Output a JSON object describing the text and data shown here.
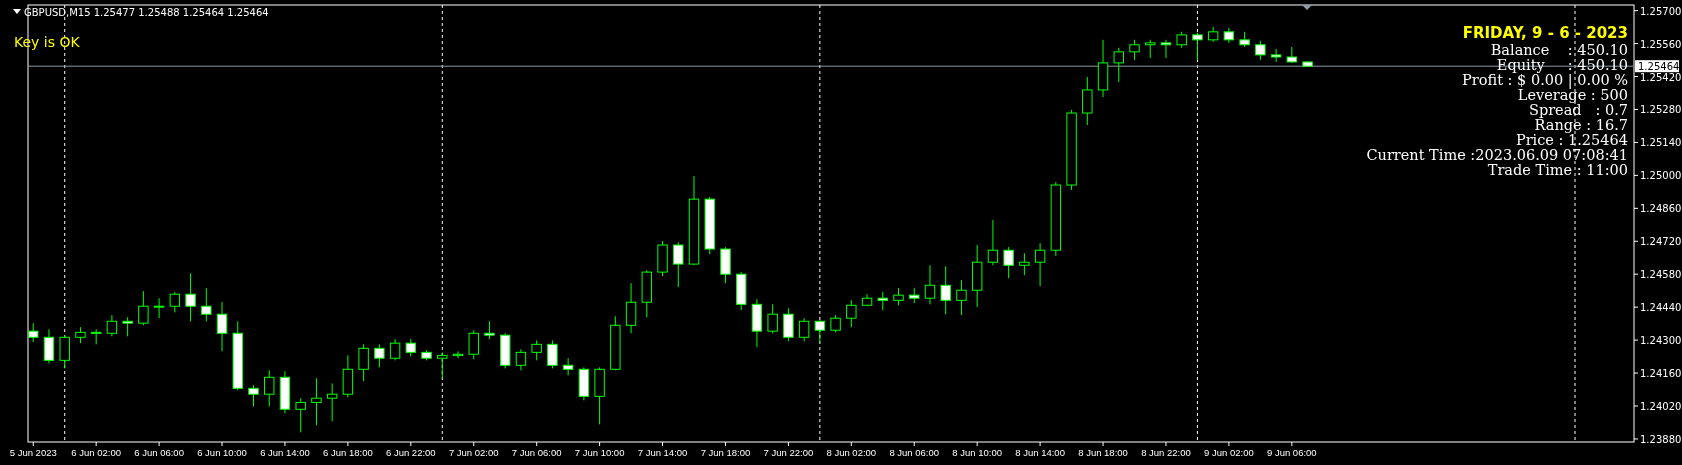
{
  "chart_data": {
    "type": "candlestick",
    "title": "GBPUSD,M15  1.25477 1.25488 1.25464 1.25464",
    "annotations": [
      "Key is OK",
      "FRIDAY, 9 - 6 - 2023",
      "Balance    : 450.10",
      "Equity     : 450.10",
      "Profit : $ 0.00 | 0.00 %",
      "Leverage : 500",
      "Spread   : 0.7",
      "Range : 16.7",
      "Price : 1.25464",
      "Current Time :2023.06.09 07:08:41",
      "Trade Time : 11:00"
    ],
    "x": [
      "2023-06-05T22:00",
      "2023-06-05T23:00",
      "2023-06-06T00:00",
      "2023-06-06T01:00",
      "2023-06-06T02:00",
      "2023-06-06T03:00",
      "2023-06-06T04:00",
      "2023-06-06T05:00",
      "2023-06-06T06:00",
      "2023-06-06T07:00",
      "2023-06-06T08:00",
      "2023-06-06T09:00",
      "2023-06-06T10:00",
      "2023-06-06T11:00",
      "2023-06-06T12:00",
      "2023-06-06T13:00",
      "2023-06-06T14:00",
      "2023-06-06T15:00",
      "2023-06-06T16:00",
      "2023-06-06T17:00",
      "2023-06-06T18:00",
      "2023-06-06T19:00",
      "2023-06-06T20:00",
      "2023-06-06T21:00",
      "2023-06-06T22:00",
      "2023-06-06T23:00",
      "2023-06-07T00:00",
      "2023-06-07T01:00",
      "2023-06-07T02:00",
      "2023-06-07T03:00",
      "2023-06-07T04:00",
      "2023-06-07T05:00",
      "2023-06-07T06:00",
      "2023-06-07T07:00",
      "2023-06-07T08:00",
      "2023-06-07T09:00",
      "2023-06-07T10:00",
      "2023-06-07T11:00",
      "2023-06-07T12:00",
      "2023-06-07T13:00",
      "2023-06-07T14:00",
      "2023-06-07T15:00",
      "2023-06-07T16:00",
      "2023-06-07T17:00",
      "2023-06-07T18:00",
      "2023-06-07T19:00",
      "2023-06-07T20:00",
      "2023-06-07T21:00",
      "2023-06-07T22:00",
      "2023-06-07T23:00",
      "2023-06-08T00:00",
      "2023-06-08T01:00",
      "2023-06-08T02:00",
      "2023-06-08T03:00",
      "2023-06-08T04:00",
      "2023-06-08T05:00",
      "2023-06-08T06:00",
      "2023-06-08T07:00",
      "2023-06-08T08:00",
      "2023-06-08T09:00",
      "2023-06-08T10:00",
      "2023-06-08T11:00",
      "2023-06-08T12:00",
      "2023-06-08T13:00",
      "2023-06-08T14:00",
      "2023-06-08T15:00",
      "2023-06-08T16:00",
      "2023-06-08T17:00",
      "2023-06-08T18:00",
      "2023-06-08T19:00",
      "2023-06-08T20:00",
      "2023-06-08T21:00",
      "2023-06-08T22:00",
      "2023-06-08T23:00",
      "2023-06-09T00:00",
      "2023-06-09T01:00",
      "2023-06-09T02:00",
      "2023-06-09T03:00",
      "2023-06-09T04:00",
      "2023-06-09T05:00",
      "2023-06-09T06:00",
      "2023-06-09T07:00"
    ],
    "ohlc": [
      [
        1.24338,
        1.24372,
        1.24291,
        1.24312
      ],
      [
        1.24312,
        1.24346,
        1.24201,
        1.24214
      ],
      [
        1.24214,
        1.24321,
        1.2418,
        1.24312
      ],
      [
        1.24312,
        1.24355,
        1.24287,
        1.24333
      ],
      [
        1.24333,
        1.24346,
        1.24282,
        1.24329
      ],
      [
        1.24329,
        1.24406,
        1.24316,
        1.2438
      ],
      [
        1.2438,
        1.24397,
        1.24316,
        1.24372
      ],
      [
        1.24372,
        1.24508,
        1.24363,
        1.24444
      ],
      [
        1.24444,
        1.24478,
        1.24393,
        1.24444
      ],
      [
        1.24444,
        1.24504,
        1.24418,
        1.24495
      ],
      [
        1.24495,
        1.24584,
        1.2438,
        1.24444
      ],
      [
        1.24444,
        1.24521,
        1.2438,
        1.2441
      ],
      [
        1.2441,
        1.24461,
        1.24252,
        1.24329
      ],
      [
        1.24329,
        1.2438,
        1.24087,
        1.24095
      ],
      [
        1.24095,
        1.24108,
        1.24018,
        1.2407
      ],
      [
        1.2407,
        1.24172,
        1.24018,
        1.24142
      ],
      [
        1.24142,
        1.24167,
        1.23989,
        1.24006
      ],
      [
        1.24006,
        1.24053,
        1.23908,
        1.24035
      ],
      [
        1.24035,
        1.24138,
        1.23938,
        1.24053
      ],
      [
        1.24053,
        1.24116,
        1.23955,
        1.2407
      ],
      [
        1.2407,
        1.24235,
        1.24057,
        1.24176
      ],
      [
        1.24176,
        1.24282,
        1.24125,
        1.24265
      ],
      [
        1.24265,
        1.24282,
        1.24184,
        1.24223
      ],
      [
        1.24223,
        1.24304,
        1.24214,
        1.24287
      ],
      [
        1.24287,
        1.24304,
        1.24231,
        1.24248
      ],
      [
        1.24248,
        1.24257,
        1.24214,
        1.24223
      ],
      [
        1.24223,
        1.24248,
        1.24138,
        1.24235
      ],
      [
        1.24235,
        1.24252,
        1.24223,
        1.2424
      ],
      [
        1.2424,
        1.24342,
        1.24218,
        1.24329
      ],
      [
        1.24329,
        1.2438,
        1.24304,
        1.24321
      ],
      [
        1.24321,
        1.24329,
        1.2418,
        1.24193
      ],
      [
        1.24193,
        1.24261,
        1.24172,
        1.24248
      ],
      [
        1.24248,
        1.24299,
        1.24214,
        1.24282
      ],
      [
        1.24282,
        1.24299,
        1.2418,
        1.24193
      ],
      [
        1.24193,
        1.24223,
        1.2415,
        1.24176
      ],
      [
        1.24176,
        1.24184,
        1.24044,
        1.24061
      ],
      [
        1.24061,
        1.24184,
        1.23942,
        1.24176
      ],
      [
        1.24176,
        1.24401,
        1.24172,
        1.24363
      ],
      [
        1.24363,
        1.24542,
        1.24329,
        1.24461
      ],
      [
        1.24461,
        1.24597,
        1.24397,
        1.24589
      ],
      [
        1.24589,
        1.24721,
        1.24572,
        1.24704
      ],
      [
        1.24704,
        1.24716,
        1.24525,
        1.24623
      ],
      [
        1.24623,
        1.24997,
        1.24618,
        1.24899
      ],
      [
        1.24899,
        1.24908,
        1.24665,
        1.24687
      ],
      [
        1.24687,
        1.24695,
        1.24542,
        1.2458
      ],
      [
        1.2458,
        1.24589,
        1.24427,
        1.24452
      ],
      [
        1.24452,
        1.24474,
        1.2427,
        1.24338
      ],
      [
        1.24338,
        1.24452,
        1.24329,
        1.2441
      ],
      [
        1.2441,
        1.24435,
        1.24295,
        1.24312
      ],
      [
        1.24312,
        1.24393,
        1.24295,
        1.2438
      ],
      [
        1.2438,
        1.24384,
        1.24287,
        1.24342
      ],
      [
        1.24342,
        1.24406,
        1.24333,
        1.24393
      ],
      [
        1.24393,
        1.24469,
        1.24355,
        1.24448
      ],
      [
        1.24448,
        1.24495,
        1.24444,
        1.24478
      ],
      [
        1.24478,
        1.24504,
        1.24427,
        1.24469
      ],
      [
        1.24469,
        1.24521,
        1.24448,
        1.24491
      ],
      [
        1.24491,
        1.24521,
        1.24457,
        1.24478
      ],
      [
        1.24478,
        1.24618,
        1.24452,
        1.24533
      ],
      [
        1.24533,
        1.24614,
        1.2441,
        1.24469
      ],
      [
        1.24469,
        1.24555,
        1.24406,
        1.24512
      ],
      [
        1.24512,
        1.24704,
        1.2444,
        1.24631
      ],
      [
        1.24631,
        1.2481,
        1.24618,
        1.24682
      ],
      [
        1.24682,
        1.24695,
        1.24563,
        1.24618
      ],
      [
        1.24618,
        1.24669,
        1.24576,
        1.24631
      ],
      [
        1.24631,
        1.24712,
        1.24529,
        1.24682
      ],
      [
        1.24682,
        1.24972,
        1.24657,
        1.24959
      ],
      [
        1.24959,
        1.25278,
        1.24938,
        1.25265
      ],
      [
        1.25265,
        1.25418,
        1.25214,
        1.25363
      ],
      [
        1.25363,
        1.25576,
        1.25333,
        1.25478
      ],
      [
        1.25478,
        1.25542,
        1.25397,
        1.25525
      ],
      [
        1.25525,
        1.25576,
        1.25491,
        1.25555
      ],
      [
        1.25555,
        1.25576,
        1.25499,
        1.25563
      ],
      [
        1.25563,
        1.25576,
        1.25499,
        1.25555
      ],
      [
        1.25555,
        1.2561,
        1.25542,
        1.25597
      ],
      [
        1.25597,
        1.25606,
        1.25491,
        1.25576
      ],
      [
        1.25576,
        1.25631,
        1.25567,
        1.2561
      ],
      [
        1.2561,
        1.25627,
        1.25563,
        1.25576
      ],
      [
        1.25576,
        1.2561,
        1.25546,
        1.25555
      ],
      [
        1.25555,
        1.25572,
        1.25491,
        1.25512
      ],
      [
        1.25512,
        1.25538,
        1.25482,
        1.25503
      ],
      [
        1.25503,
        1.25546,
        1.25478,
        1.25482
      ],
      [
        1.25482,
        1.25486,
        1.25461,
        1.25464
      ]
    ],
    "color": "#00ff00",
    "xlim": [
      "2023-06-05T21:40",
      "2023-06-10T03:45"
    ],
    "xticks": [
      {
        "value": "2023-06-05T22:00",
        "label": "5 Jun 2023"
      },
      {
        "value": "2023-06-06T02:00",
        "label": "6 Jun 02:00"
      },
      {
        "value": "2023-06-06T06:00",
        "label": "6 Jun 06:00"
      },
      {
        "value": "2023-06-06T10:00",
        "label": "6 Jun 10:00"
      },
      {
        "value": "2023-06-06T14:00",
        "label": "6 Jun 14:00"
      },
      {
        "value": "2023-06-06T18:00",
        "label": "6 Jun 18:00"
      },
      {
        "value": "2023-06-06T22:00",
        "label": "6 Jun 22:00"
      },
      {
        "value": "2023-06-07T02:00",
        "label": "7 Jun 02:00"
      },
      {
        "value": "2023-06-07T06:00",
        "label": "7 Jun 06:00"
      },
      {
        "value": "2023-06-07T10:00",
        "label": "7 Jun 10:00"
      },
      {
        "value": "2023-06-07T14:00",
        "label": "7 Jun 14:00"
      },
      {
        "value": "2023-06-07T18:00",
        "label": "7 Jun 18:00"
      },
      {
        "value": "2023-06-07T22:00",
        "label": "7 Jun 22:00"
      },
      {
        "value": "2023-06-08T02:00",
        "label": "8 Jun 02:00"
      },
      {
        "value": "2023-06-08T06:00",
        "label": "8 Jun 06:00"
      },
      {
        "value": "2023-06-08T10:00",
        "label": "8 Jun 10:00"
      },
      {
        "value": "2023-06-08T14:00",
        "label": "8 Jun 14:00"
      },
      {
        "value": "2023-06-08T18:00",
        "label": "8 Jun 18:00"
      },
      {
        "value": "2023-06-08T22:00",
        "label": "8 Jun 22:00"
      },
      {
        "value": "2023-06-09T02:00",
        "label": "9 Jun 02:00"
      },
      {
        "value": "2023-06-09T06:00",
        "label": "9 Jun 06:00"
      }
    ],
    "ylim": [
      1.23867,
      1.25724
    ],
    "yticks": [
      {
        "value": 1.257,
        "label": "1.25700"
      },
      {
        "value": 1.2556,
        "label": "1.25560"
      },
      {
        "value": 1.2542,
        "label": "1.25420"
      },
      {
        "value": 1.2528,
        "label": "1.25280"
      },
      {
        "value": 1.2514,
        "label": "1.25140"
      },
      {
        "value": 1.25,
        "label": "1.25000"
      },
      {
        "value": 1.2486,
        "label": "1.24860"
      },
      {
        "value": 1.2472,
        "label": "1.24720"
      },
      {
        "value": 1.2458,
        "label": "1.24580"
      },
      {
        "value": 1.2444,
        "label": "1.24440"
      },
      {
        "value": 1.243,
        "label": "1.24300"
      },
      {
        "value": 1.2416,
        "label": "1.24160"
      },
      {
        "value": 1.2402,
        "label": "1.24020"
      },
      {
        "value": 1.2388,
        "label": "1.23880"
      }
    ],
    "ref_lines": [
      {
        "axis": "y",
        "value": 1.25464,
        "label": "1.25464",
        "color": "#8c9aa8",
        "line_style": "solid"
      },
      {
        "axis": "x",
        "value": "2023-06-06T00:00",
        "color": "#ffffff",
        "line_style": "dashed"
      },
      {
        "axis": "x",
        "value": "2023-06-07T00:00",
        "color": "#ffffff",
        "line_style": "dashed"
      },
      {
        "axis": "x",
        "value": "2023-06-08T00:00",
        "color": "#ffffff",
        "line_style": "dashed"
      },
      {
        "axis": "x",
        "value": "2023-06-09T00:00",
        "color": "#ffffff",
        "line_style": "dashed"
      },
      {
        "axis": "x",
        "value": "2023-06-10T00:00",
        "color": "#ffffff",
        "line_style": "dashed"
      }
    ]
  }
}
